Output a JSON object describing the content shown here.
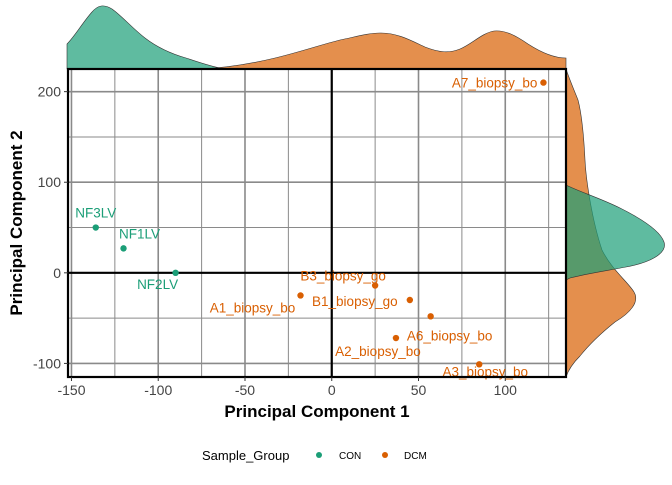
{
  "chart_data": {
    "type": "scatter",
    "xlabel": "Principal Component 1",
    "ylabel": "Principal Component 2",
    "xlim": [
      -152,
      135
    ],
    "ylim": [
      -115,
      225
    ],
    "xticks": [
      -150,
      -100,
      -50,
      0,
      50,
      100
    ],
    "yticks": [
      -100,
      0,
      100,
      200
    ],
    "grid": true,
    "reference_lines": {
      "x": 0,
      "y": 0
    },
    "legend": {
      "position": "bottom",
      "title": "Sample_Group",
      "entries": [
        {
          "label": "CON",
          "color": "#1b9e77"
        },
        {
          "label": "DCM",
          "color": "#d95f02"
        }
      ]
    },
    "series": [
      {
        "name": "CON",
        "color": "#1b9e77",
        "points": [
          {
            "label": "NF3LV",
            "x": -136,
            "y": 50
          },
          {
            "label": "NF1LV",
            "x": -120,
            "y": 27
          },
          {
            "label": "NF2LV",
            "x": -90,
            "y": 0
          }
        ]
      },
      {
        "name": "DCM",
        "color": "#d95f02",
        "points": [
          {
            "label": "A7_biopsy_bo",
            "x": 122,
            "y": 210
          },
          {
            "label": "B3_biopsy_go",
            "x": 25,
            "y": -14
          },
          {
            "label": "A1_biopsy_bo",
            "x": -18,
            "y": -25
          },
          {
            "label": "B1_biopsy_go",
            "x": 45,
            "y": -30
          },
          {
            "label": "A6_biopsy_bo",
            "x": 57,
            "y": -48
          },
          {
            "label": "A2_biopsy_bo",
            "x": 37,
            "y": -72
          },
          {
            "label": "A3_biopsy_bo",
            "x": 85,
            "y": -101
          }
        ]
      }
    ],
    "marginal_densities": true
  }
}
